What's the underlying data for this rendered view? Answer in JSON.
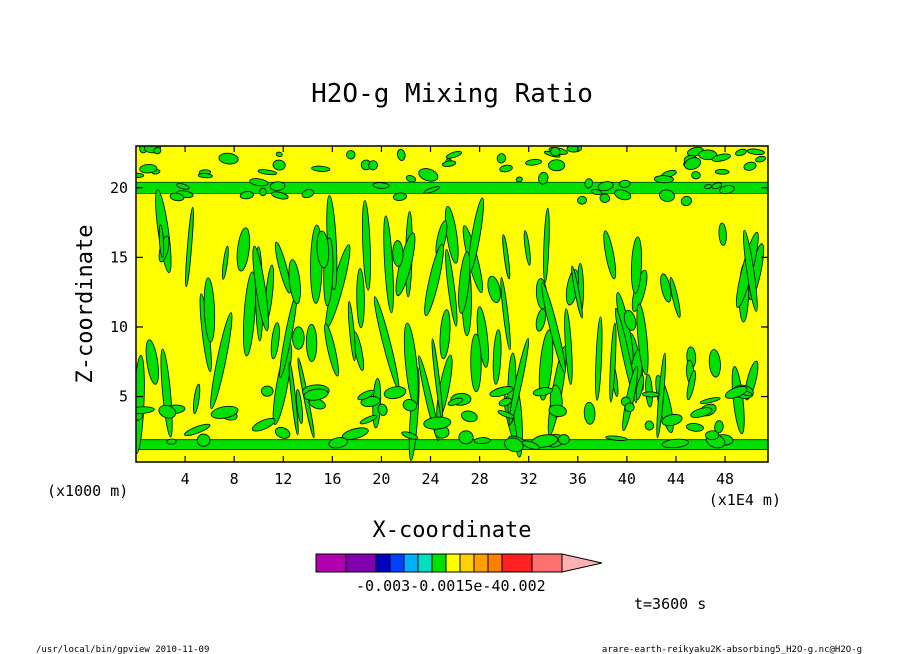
{
  "chart_data": {
    "type": "heatmap",
    "title": "H2O-g Mixing Ratio",
    "xlabel": "X-coordinate",
    "ylabel": "Z-coordinate",
    "x_unit": "(x1E4 m)",
    "y_unit": "(x1000 m)",
    "xlim": [
      0,
      51.5
    ],
    "ylim": [
      0.3,
      23
    ],
    "x_ticks": [
      4,
      8,
      12,
      16,
      20,
      24,
      28,
      32,
      36,
      40,
      44,
      48
    ],
    "y_ticks": [
      5,
      10,
      15,
      20
    ],
    "colorbar": {
      "colors": [
        "#b000b0",
        "#8000b0",
        "#0000c0",
        "#0040ff",
        "#00b0ff",
        "#00e0c0",
        "#00e000",
        "#ffff00",
        "#ffd000",
        "#ffa000",
        "#ff8000",
        "#ff2020",
        "#ff7070",
        "#ffb0b0"
      ],
      "labels": [
        "-0.003",
        "-0.001",
        "5e-4",
        "0.002"
      ],
      "label_text": "-0.003-0.0015e-40.002"
    },
    "field_colors": {
      "background": "#ffff00",
      "band": "#00e000"
    },
    "time_label": "t=3600 s"
  },
  "footer": {
    "left": "/usr/local/bin/gpview   2010-11-09",
    "right": "arare-earth-reikyaku2K-absorbing5_H2O-g.nc@H2O-g"
  }
}
